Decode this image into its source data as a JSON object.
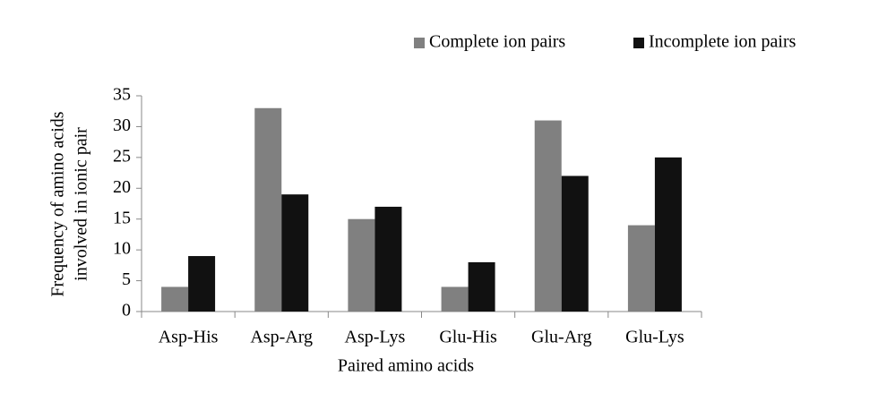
{
  "chart_data": {
    "type": "bar",
    "xlabel": "Paired amino acids",
    "ylabel": [
      "Frequency of amino acids",
      "involved in ionic pair"
    ],
    "categories": [
      "Asp-His",
      "Asp-Arg",
      "Asp-Lys",
      "Glu-His",
      "Glu-Arg",
      "Glu-Lys"
    ],
    "series": [
      {
        "name": "Complete ion pairs",
        "color": "#808080",
        "values": [
          4,
          33,
          15,
          4,
          31,
          14
        ]
      },
      {
        "name": "Incomplete ion pairs",
        "color": "#111111",
        "values": [
          9,
          19,
          17,
          8,
          22,
          25
        ]
      }
    ],
    "ylim": [
      0,
      35
    ],
    "yticks": [
      0,
      5,
      10,
      15,
      20,
      25,
      30,
      35
    ],
    "grid": false,
    "legend": "top-right"
  }
}
